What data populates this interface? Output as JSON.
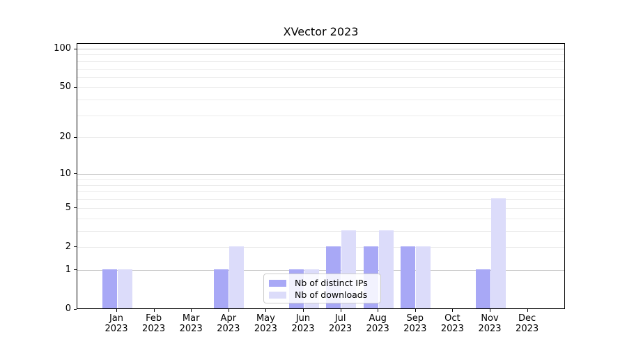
{
  "chart_data": {
    "type": "bar",
    "title": "XVector 2023",
    "categories": [
      "Jan 2023",
      "Feb 2023",
      "Mar 2023",
      "Apr 2023",
      "May 2023",
      "Jun 2023",
      "Jul 2023",
      "Aug 2023",
      "Sep 2023",
      "Oct 2023",
      "Nov 2023",
      "Dec 2023"
    ],
    "series": [
      {
        "name": "Nb of distinct IPs",
        "color": "#a8a8f6",
        "values": [
          1,
          0,
          0,
          1,
          0,
          1,
          2,
          2,
          2,
          0,
          1,
          0
        ]
      },
      {
        "name": "Nb of downloads",
        "color": "#dcdcfa",
        "values": [
          1,
          0,
          0,
          2,
          0,
          1,
          3,
          3,
          2,
          0,
          6,
          0
        ]
      }
    ],
    "xlabel": "",
    "ylabel": "",
    "yscale": "log10(1+y)",
    "ylim": [
      0,
      110
    ],
    "yticks": [
      0,
      1,
      2,
      5,
      10,
      20,
      50,
      100
    ],
    "grid": "on",
    "grid_dark_levels": [
      1,
      10,
      100
    ],
    "grid_light_levels": [
      2,
      3,
      4,
      5,
      6,
      7,
      8,
      9,
      20,
      30,
      40,
      50,
      60,
      70,
      80,
      90
    ],
    "legend_position": "lower center",
    "colors": {
      "grid_dark": "#c8c8c8",
      "grid_light": "#ececec",
      "axis": "#000000",
      "legend_border": "#cccccc"
    }
  }
}
